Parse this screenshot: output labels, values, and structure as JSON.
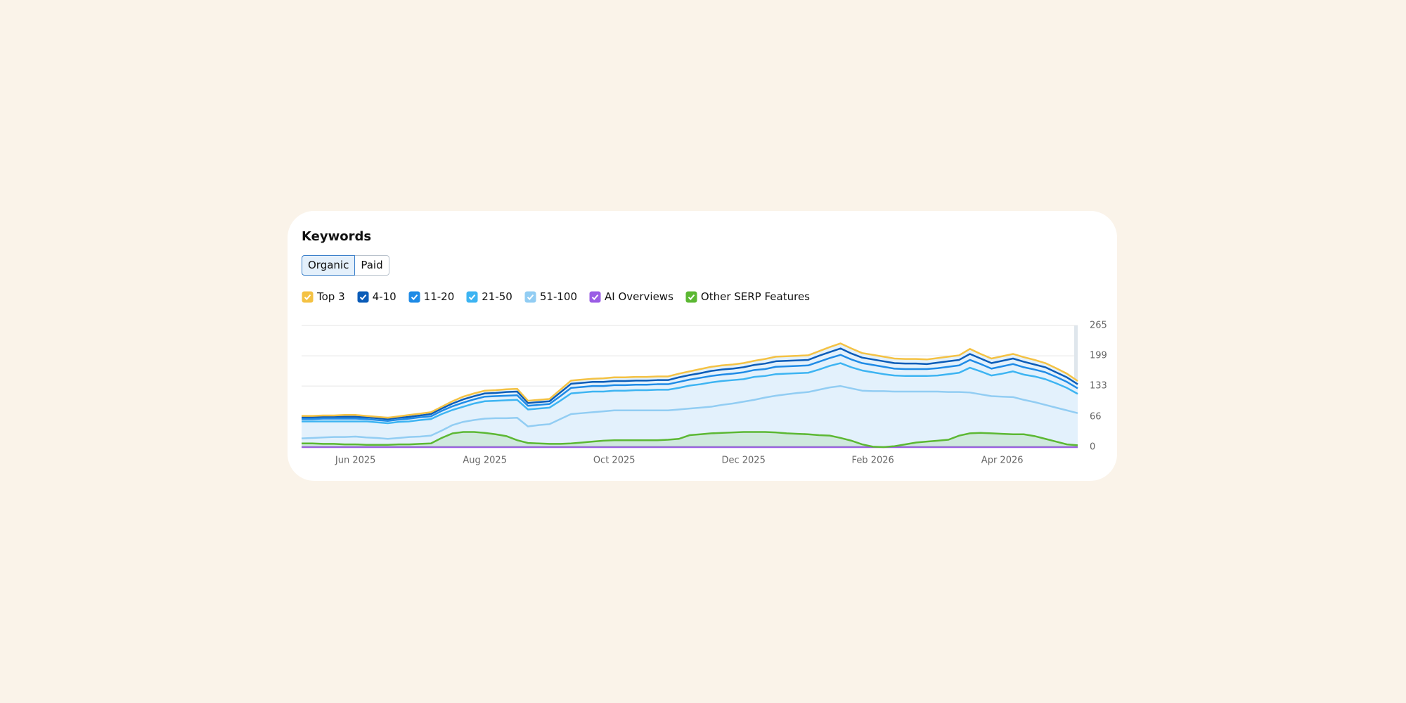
{
  "header": {
    "title": "Keywords",
    "tabs": [
      "Organic",
      "Paid"
    ]
  },
  "chart_data": {
    "type": "stacked-line",
    "categories": [
      null,
      null,
      null,
      null,
      null,
      "Jun 2025",
      null,
      null,
      null,
      null,
      null,
      null,
      null,
      null,
      null,
      null,
      null,
      "Aug 2025",
      null,
      null,
      null,
      null,
      null,
      null,
      null,
      null,
      null,
      null,
      null,
      "Oct 2025",
      null,
      null,
      null,
      null,
      null,
      null,
      null,
      null,
      null,
      null,
      null,
      "Dec 2025",
      null,
      null,
      null,
      null,
      null,
      null,
      null,
      null,
      null,
      null,
      null,
      "Feb 2026",
      null,
      null,
      null,
      null,
      null,
      null,
      null,
      null,
      null,
      null,
      null,
      "Apr 2026",
      null,
      null,
      null,
      null,
      null,
      null,
      null
    ],
    "ylim": [
      0,
      265
    ],
    "yticks": [
      0,
      66,
      133,
      199,
      265
    ],
    "grid": true,
    "series": [
      {
        "name": "Top 3",
        "color": "#f4c244",
        "stacked": true,
        "values": [
          3,
          3,
          3,
          3,
          4,
          4,
          3,
          3,
          3,
          3,
          4,
          4,
          4,
          4,
          5,
          6,
          6,
          6,
          6,
          6,
          6,
          5,
          5,
          5,
          6,
          7,
          7,
          7,
          8,
          8,
          8,
          8,
          8,
          8,
          8,
          8,
          8,
          9,
          9,
          9,
          9,
          9,
          9,
          10,
          10,
          10,
          10,
          10,
          10,
          11,
          11,
          11,
          10,
          10,
          10,
          10,
          10,
          10,
          10,
          10,
          10,
          10,
          11,
          10,
          10,
          10,
          10,
          10,
          10,
          9,
          9,
          8,
          7
        ]
      },
      {
        "name": "4-10",
        "color": "#0b5cb8",
        "stacked": true,
        "values": [
          4,
          4,
          4,
          4,
          4,
          4,
          4,
          4,
          4,
          4,
          4,
          4,
          5,
          5,
          6,
          7,
          7,
          7,
          7,
          8,
          8,
          6,
          6,
          6,
          8,
          9,
          9,
          9,
          9,
          9,
          9,
          9,
          9,
          9,
          9,
          10,
          10,
          10,
          11,
          11,
          11,
          11,
          11,
          12,
          12,
          12,
          12,
          12,
          13,
          13,
          14,
          13,
          12,
          12,
          12,
          12,
          12,
          12,
          11,
          12,
          12,
          12,
          13,
          12,
          12,
          12,
          12,
          12,
          11,
          11,
          10,
          10,
          9
        ]
      },
      {
        "name": "11-20",
        "color": "#1f8be6",
        "stacked": true,
        "values": [
          5,
          5,
          6,
          6,
          6,
          6,
          5,
          5,
          5,
          5,
          6,
          6,
          6,
          7,
          8,
          9,
          9,
          10,
          10,
          10,
          10,
          8,
          8,
          8,
          10,
          12,
          12,
          12,
          12,
          12,
          12,
          12,
          12,
          12,
          12,
          13,
          13,
          14,
          14,
          14,
          14,
          15,
          15,
          15,
          16,
          16,
          16,
          16,
          17,
          17,
          18,
          17,
          16,
          16,
          16,
          15,
          15,
          15,
          15,
          16,
          16,
          16,
          17,
          16,
          15,
          16,
          16,
          16,
          15,
          15,
          14,
          13,
          12
        ]
      },
      {
        "name": "21-50",
        "color": "#3db4f2",
        "stacked": true,
        "values": [
          37,
          36,
          35,
          34,
          34,
          33,
          35,
          34,
          34,
          35,
          34,
          36,
          36,
          36,
          33,
          33,
          36,
          38,
          38,
          39,
          39,
          37,
          36,
          36,
          40,
          45,
          45,
          45,
          43,
          43,
          43,
          44,
          44,
          45,
          45,
          47,
          50,
          51,
          53,
          52,
          51,
          49,
          50,
          47,
          47,
          45,
          43,
          42,
          44,
          47,
          50,
          46,
          44,
          41,
          37,
          35,
          34,
          34,
          34,
          35,
          39,
          42,
          54,
          50,
          45,
          50,
          56,
          55,
          56,
          56,
          53,
          49,
          42
        ]
      },
      {
        "name": "51-100",
        "color": "#92cdf3",
        "stacked": true,
        "values": [
          19,
          20,
          21,
          22,
          22,
          23,
          21,
          20,
          18,
          20,
          22,
          23,
          25,
          36,
          48,
          55,
          59,
          62,
          63,
          63,
          64,
          45,
          48,
          50,
          61,
          72,
          74,
          76,
          78,
          80,
          80,
          80,
          80,
          80,
          80,
          82,
          84,
          86,
          88,
          92,
          95,
          99,
          103,
          108,
          112,
          115,
          118,
          120,
          125,
          130,
          133,
          128,
          123,
          122,
          122,
          121,
          121,
          121,
          121,
          121,
          120,
          120,
          119,
          115,
          111,
          110,
          109,
          103,
          98,
          92,
          86,
          80,
          74
        ]
      },
      {
        "name": "AI Overviews",
        "color": "#9b5de5",
        "stacked": false,
        "values": [
          0,
          0,
          0,
          0,
          0,
          0,
          0,
          0,
          0,
          0,
          0,
          0,
          0,
          0,
          0,
          0,
          0,
          0,
          0,
          0,
          0,
          0,
          0,
          0,
          0,
          0,
          0,
          0,
          0,
          0,
          0,
          0,
          0,
          0,
          0,
          0,
          0,
          0,
          0,
          0,
          0,
          0,
          0,
          0,
          0,
          0,
          0,
          0,
          0,
          0,
          0,
          0,
          0,
          0,
          0,
          0,
          0,
          0,
          0,
          0,
          0,
          0,
          0,
          0,
          0,
          0,
          0,
          0,
          0,
          0,
          0,
          0,
          0
        ]
      },
      {
        "name": "Other SERP Features",
        "color": "#5cb833",
        "stacked": false,
        "values": [
          8,
          8,
          7,
          7,
          6,
          6,
          5,
          5,
          5,
          6,
          6,
          7,
          8,
          20,
          30,
          33,
          33,
          31,
          28,
          24,
          15,
          9,
          8,
          7,
          7,
          8,
          10,
          12,
          14,
          15,
          15,
          15,
          15,
          15,
          16,
          18,
          26,
          28,
          30,
          31,
          32,
          33,
          33,
          33,
          32,
          30,
          29,
          28,
          26,
          25,
          20,
          14,
          6,
          1,
          0,
          2,
          6,
          10,
          12,
          14,
          16,
          25,
          30,
          31,
          30,
          29,
          28,
          28,
          24,
          18,
          12,
          6,
          4
        ]
      }
    ]
  }
}
